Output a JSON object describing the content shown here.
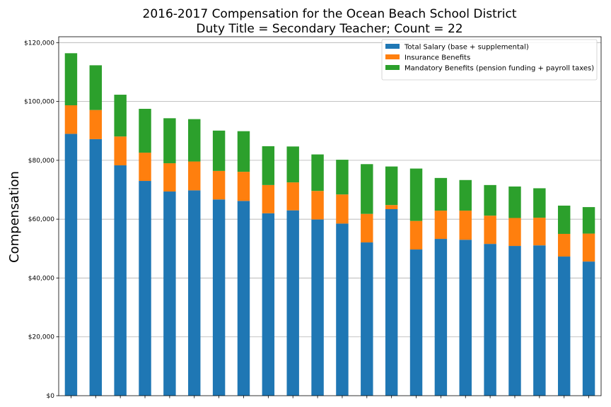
{
  "chart_data": {
    "type": "bar",
    "stacked": true,
    "title": "2016-2017 Compensation for the Ocean Beach School District",
    "subtitle": "Duty Title = Secondary Teacher; Count = 22",
    "xlabel": "",
    "ylabel": "Compensation",
    "ylim": [
      0,
      122000
    ],
    "yticks": [
      0,
      20000,
      40000,
      60000,
      80000,
      100000,
      120000
    ],
    "ytick_labels": [
      "$0",
      "$20,000",
      "$40,000",
      "$60,000",
      "$80,000",
      "$100,000",
      "$120,000"
    ],
    "grid": "horizontal",
    "legend_position": "top-right",
    "series": [
      {
        "name": "Total Salary (base + supplemental)",
        "color": "#1f77b4",
        "values": [
          89000,
          87200,
          78300,
          73000,
          69400,
          69800,
          66700,
          66200,
          62000,
          63000,
          59900,
          58500,
          52100,
          63400,
          49700,
          53300,
          53000,
          51600,
          50900,
          51100,
          47300,
          45600
        ]
      },
      {
        "name": "Insurance Benefits",
        "color": "#ff7f0e",
        "values": [
          9700,
          9900,
          9800,
          9600,
          9600,
          9800,
          9700,
          9900,
          9600,
          9500,
          9700,
          9900,
          9700,
          1400,
          9700,
          9600,
          9900,
          9600,
          9500,
          9400,
          7700,
          9500
        ]
      },
      {
        "name": "Mandatory Benefits (pension funding + payroll taxes)",
        "color": "#2ca02c",
        "values": [
          17700,
          15200,
          14200,
          14900,
          15300,
          14400,
          13700,
          13800,
          13200,
          12200,
          12400,
          11800,
          16900,
          13100,
          17800,
          11100,
          10400,
          10400,
          10700,
          10000,
          9600,
          9000
        ]
      }
    ]
  }
}
